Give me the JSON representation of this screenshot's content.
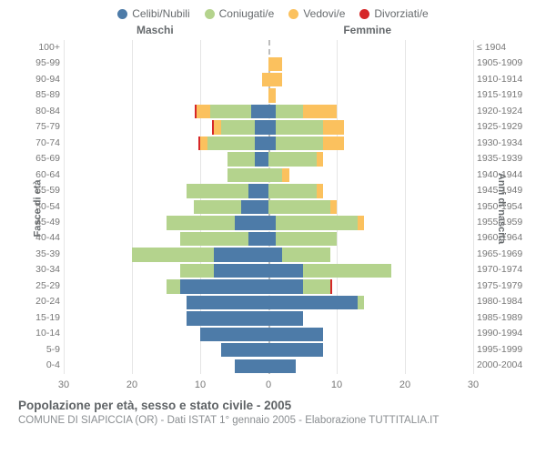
{
  "legend": [
    {
      "label": "Celibi/Nubili",
      "color": "#4d7ba8"
    },
    {
      "label": "Coniugati/e",
      "color": "#b4d38d"
    },
    {
      "label": "Vedovi/e",
      "color": "#fbc15e"
    },
    {
      "label": "Divorziati/e",
      "color": "#d62728"
    }
  ],
  "headers": {
    "left": "Maschi",
    "right": "Femmine"
  },
  "axis_labels": {
    "left": "Fasce di età",
    "right": "Anni di nascita"
  },
  "x_axis": {
    "max": 30,
    "ticks_left": [
      30,
      20,
      10,
      0
    ],
    "ticks_right": [
      0,
      10,
      20,
      30
    ]
  },
  "chart": {
    "bar_gap_ratio": 0.12,
    "background_color": "#ffffff",
    "grid_color": "#e5e5e5",
    "center_line_color": "#bdbdbd"
  },
  "age_bands": [
    {
      "age": "100+",
      "birth": "≤ 1904",
      "M": {
        "cel": 0,
        "con": 0,
        "ved": 0,
        "div": 0
      },
      "F": {
        "cel": 0,
        "con": 0,
        "ved": 0,
        "div": 0
      }
    },
    {
      "age": "95-99",
      "birth": "1905-1909",
      "M": {
        "cel": 0,
        "con": 0,
        "ved": 0,
        "div": 0
      },
      "F": {
        "cel": 0,
        "con": 0,
        "ved": 2,
        "div": 0
      }
    },
    {
      "age": "90-94",
      "birth": "1910-1914",
      "M": {
        "cel": 0,
        "con": 0,
        "ved": 1,
        "div": 0
      },
      "F": {
        "cel": 0,
        "con": 0,
        "ved": 2,
        "div": 0
      }
    },
    {
      "age": "85-89",
      "birth": "1915-1919",
      "M": {
        "cel": 0,
        "con": 0,
        "ved": 0,
        "div": 0
      },
      "F": {
        "cel": 0,
        "con": 0,
        "ved": 1,
        "div": 0
      }
    },
    {
      "age": "80-84",
      "birth": "1920-1924",
      "M": {
        "cel": 2.5,
        "con": 6,
        "ved": 2,
        "div": 0.3
      },
      "F": {
        "cel": 1,
        "con": 4,
        "ved": 5,
        "div": 0
      }
    },
    {
      "age": "75-79",
      "birth": "1925-1929",
      "M": {
        "cel": 2,
        "con": 5,
        "ved": 1,
        "div": 0.3
      },
      "F": {
        "cel": 1,
        "con": 7,
        "ved": 3,
        "div": 0
      }
    },
    {
      "age": "70-74",
      "birth": "1930-1934",
      "M": {
        "cel": 2,
        "con": 7,
        "ved": 1,
        "div": 0.3
      },
      "F": {
        "cel": 1,
        "con": 7,
        "ved": 3,
        "div": 0
      }
    },
    {
      "age": "65-69",
      "birth": "1935-1939",
      "M": {
        "cel": 2,
        "con": 4,
        "ved": 0,
        "div": 0
      },
      "F": {
        "cel": 0,
        "con": 7,
        "ved": 1,
        "div": 0
      }
    },
    {
      "age": "60-64",
      "birth": "1940-1944",
      "M": {
        "cel": 0,
        "con": 6,
        "ved": 0,
        "div": 0
      },
      "F": {
        "cel": 0,
        "con": 2,
        "ved": 1,
        "div": 0
      }
    },
    {
      "age": "55-59",
      "birth": "1945-1949",
      "M": {
        "cel": 3,
        "con": 9,
        "ved": 0,
        "div": 0
      },
      "F": {
        "cel": 0,
        "con": 7,
        "ved": 1,
        "div": 0
      }
    },
    {
      "age": "50-54",
      "birth": "1950-1954",
      "M": {
        "cel": 4,
        "con": 7,
        "ved": 0,
        "div": 0
      },
      "F": {
        "cel": 0,
        "con": 9,
        "ved": 1,
        "div": 0
      }
    },
    {
      "age": "45-49",
      "birth": "1955-1959",
      "M": {
        "cel": 5,
        "con": 10,
        "ved": 0,
        "div": 0
      },
      "F": {
        "cel": 1,
        "con": 12,
        "ved": 1,
        "div": 0
      }
    },
    {
      "age": "40-44",
      "birth": "1960-1964",
      "M": {
        "cel": 3,
        "con": 10,
        "ved": 0,
        "div": 0
      },
      "F": {
        "cel": 1,
        "con": 9,
        "ved": 0,
        "div": 0
      }
    },
    {
      "age": "35-39",
      "birth": "1965-1969",
      "M": {
        "cel": 8,
        "con": 12,
        "ved": 0,
        "div": 0
      },
      "F": {
        "cel": 2,
        "con": 7,
        "ved": 0,
        "div": 0
      }
    },
    {
      "age": "30-34",
      "birth": "1970-1974",
      "M": {
        "cel": 8,
        "con": 5,
        "ved": 0,
        "div": 0
      },
      "F": {
        "cel": 5,
        "con": 13,
        "ved": 0,
        "div": 0
      }
    },
    {
      "age": "25-29",
      "birth": "1975-1979",
      "M": {
        "cel": 13,
        "con": 2,
        "ved": 0,
        "div": 0
      },
      "F": {
        "cel": 5,
        "con": 4,
        "ved": 0,
        "div": 0.3
      }
    },
    {
      "age": "20-24",
      "birth": "1980-1984",
      "M": {
        "cel": 12,
        "con": 0,
        "ved": 0,
        "div": 0
      },
      "F": {
        "cel": 13,
        "con": 1,
        "ved": 0,
        "div": 0
      }
    },
    {
      "age": "15-19",
      "birth": "1985-1989",
      "M": {
        "cel": 12,
        "con": 0,
        "ved": 0,
        "div": 0
      },
      "F": {
        "cel": 5,
        "con": 0,
        "ved": 0,
        "div": 0
      }
    },
    {
      "age": "10-14",
      "birth": "1990-1994",
      "M": {
        "cel": 10,
        "con": 0,
        "ved": 0,
        "div": 0
      },
      "F": {
        "cel": 8,
        "con": 0,
        "ved": 0,
        "div": 0
      }
    },
    {
      "age": "5-9",
      "birth": "1995-1999",
      "M": {
        "cel": 7,
        "con": 0,
        "ved": 0,
        "div": 0
      },
      "F": {
        "cel": 8,
        "con": 0,
        "ved": 0,
        "div": 0
      }
    },
    {
      "age": "0-4",
      "birth": "2000-2004",
      "M": {
        "cel": 5,
        "con": 0,
        "ved": 0,
        "div": 0
      },
      "F": {
        "cel": 4,
        "con": 0,
        "ved": 0,
        "div": 0
      }
    }
  ],
  "footer": {
    "title": "Popolazione per età, sesso e stato civile - 2005",
    "subtitle": "COMUNE DI SIAPICCIA (OR) - Dati ISTAT 1° gennaio 2005 - Elaborazione TUTTITALIA.IT"
  }
}
